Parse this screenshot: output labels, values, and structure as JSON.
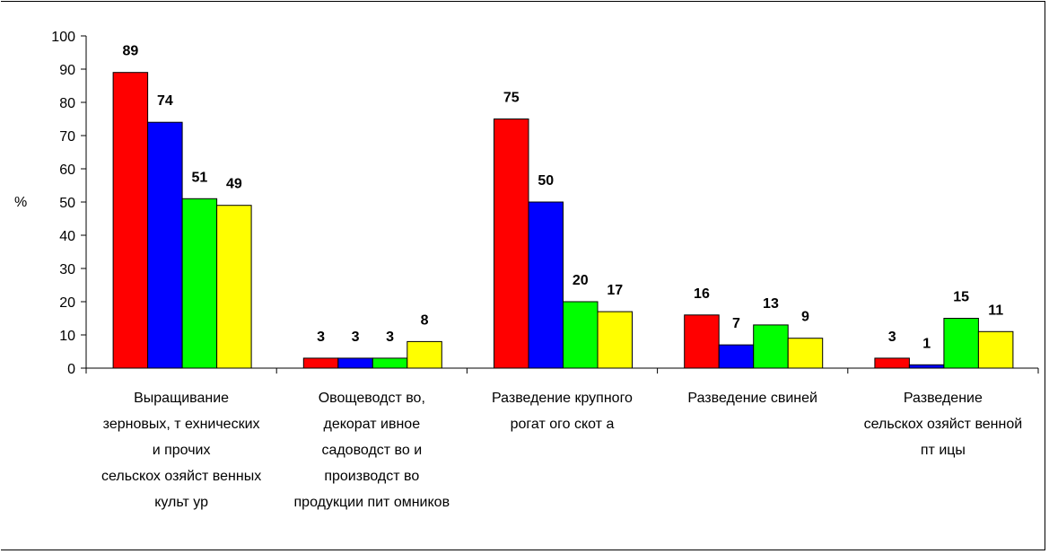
{
  "chart_data": {
    "type": "bar",
    "title": "",
    "xlabel": "",
    "ylabel": "%",
    "ylim": [
      0,
      100
    ],
    "yticks": [
      "0",
      "10",
      "20",
      "30",
      "40",
      "50",
      "60",
      "70",
      "80",
      "90",
      "100"
    ],
    "grid": false,
    "legend": "none",
    "categories": [
      [
        "Выращивание",
        "зерновых, т ехнических",
        "и прочих",
        "сельскох озяйст венных",
        "культ ур"
      ],
      [
        "Овощеводст во,",
        "декорат ивное",
        "садоводст во и",
        "производст во",
        "продукции пит омников"
      ],
      [
        "Разведение крупного",
        "рогат ого скот а"
      ],
      [
        "Разведение свиней"
      ],
      [
        "Разведение",
        "сельскох озяйст венной",
        "пт ицы"
      ]
    ],
    "series": [
      {
        "color": "#ff0000",
        "values": [
          89,
          3,
          75,
          16,
          3
        ]
      },
      {
        "color": "#0000ff",
        "values": [
          74,
          3,
          50,
          7,
          1
        ]
      },
      {
        "color": "#00ff00",
        "values": [
          51,
          3,
          20,
          13,
          15
        ]
      },
      {
        "color": "#ffff00",
        "values": [
          49,
          8,
          17,
          9,
          11
        ]
      }
    ]
  }
}
